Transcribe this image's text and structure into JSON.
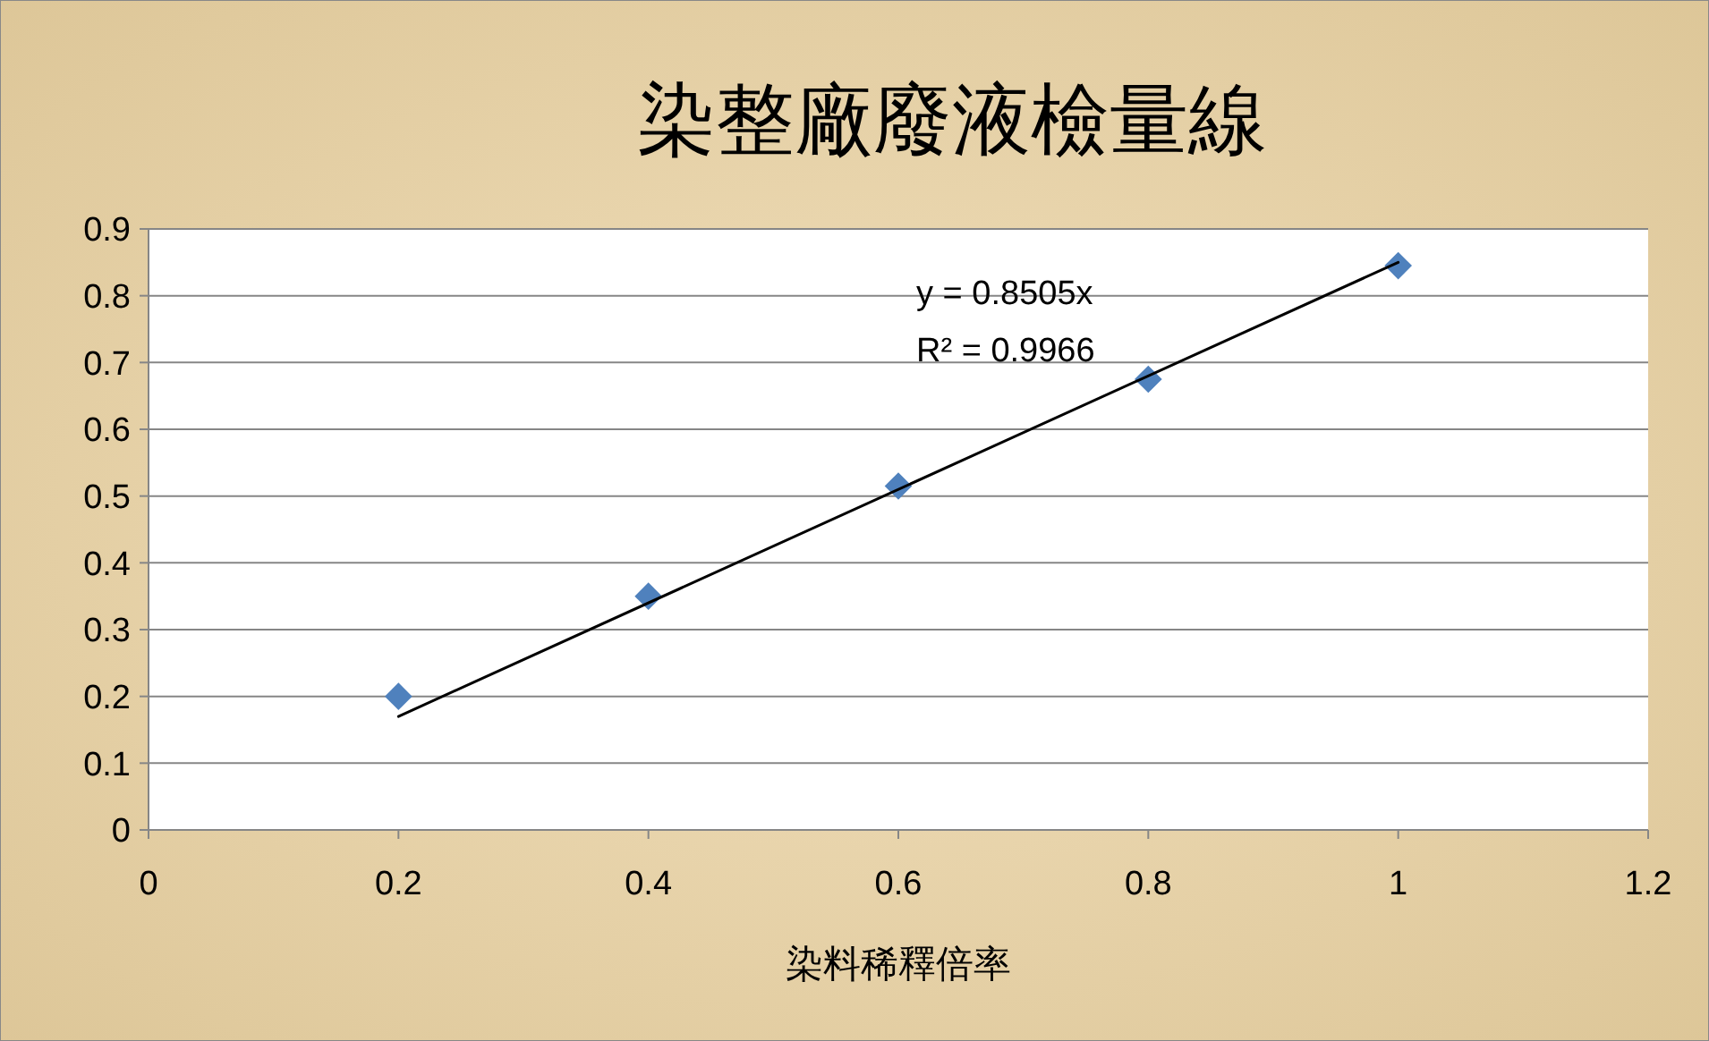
{
  "chart_data": {
    "type": "scatter",
    "title": "染整廠廢液檢量線",
    "xlabel": "染料稀釋倍率",
    "x": [
      0.2,
      0.4,
      0.6,
      0.8,
      1
    ],
    "series": [
      {
        "color": "#4f81bd",
        "values": [
          0.2,
          0.35,
          0.515,
          0.675,
          0.845
        ],
        "marker": "diamond"
      },
      {
        "type": "line",
        "color": "#000000",
        "x": [
          0.2,
          1
        ],
        "values": [
          0.17,
          0.85
        ],
        "marker": "none"
      }
    ],
    "annotations": [
      "y = 0.8505x",
      "R² = 0.9966"
    ],
    "xlim": [
      0,
      1.2
    ],
    "xticks": [
      0,
      0.2,
      0.4,
      0.6,
      0.8,
      1,
      1.2
    ],
    "ylim": [
      0,
      0.9
    ],
    "yticks": [
      0,
      0.1,
      0.2,
      0.3,
      0.4,
      0.5,
      0.6,
      0.7,
      0.8,
      0.9
    ],
    "grid": "y"
  }
}
